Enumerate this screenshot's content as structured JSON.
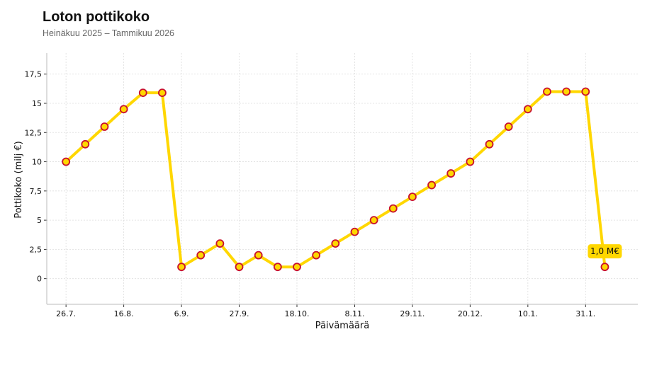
{
  "chart_data": {
    "type": "line",
    "title": "Loton pottikoko",
    "subtitle": "Heinäkuu 2025 – Tammikuu 2026",
    "xlabel": "Päivämäärä",
    "ylabel": "Pottikoko (milj €)",
    "ylim": [
      -2.2,
      19.3
    ],
    "yticks": [
      {
        "value": 0,
        "label": "0"
      },
      {
        "value": 2.5,
        "label": "2,5"
      },
      {
        "value": 5,
        "label": "5"
      },
      {
        "value": 7.5,
        "label": "7,5"
      },
      {
        "value": 10,
        "label": "10"
      },
      {
        "value": 12.5,
        "label": "12,5"
      },
      {
        "value": 15,
        "label": "15"
      },
      {
        "value": 17.5,
        "label": "17,5"
      }
    ],
    "xticks": [
      {
        "date": "2025-07-26",
        "label": "26.7."
      },
      {
        "date": "2025-08-16",
        "label": "16.8."
      },
      {
        "date": "2025-09-06",
        "label": "6.9."
      },
      {
        "date": "2025-09-27",
        "label": "27.9."
      },
      {
        "date": "2025-10-18",
        "label": "18.10."
      },
      {
        "date": "2025-11-08",
        "label": "8.11."
      },
      {
        "date": "2025-11-29",
        "label": "29.11."
      },
      {
        "date": "2025-12-20",
        "label": "20.12."
      },
      {
        "date": "2026-01-10",
        "label": "10.1."
      },
      {
        "date": "2026-01-31",
        "label": "31.1."
      }
    ],
    "xlim": [
      "2025-07-19",
      "2026-02-19"
    ],
    "grid": true,
    "series": [
      {
        "line_color": "#FFD700",
        "marker_fill": "#FFD700",
        "marker_edge": "#C8102E",
        "points": [
          {
            "x": "2025-07-26",
            "y": 10.0
          },
          {
            "x": "2025-08-02",
            "y": 11.5
          },
          {
            "x": "2025-08-09",
            "y": 13.0
          },
          {
            "x": "2025-08-16",
            "y": 14.5
          },
          {
            "x": "2025-08-23",
            "y": 15.9
          },
          {
            "x": "2025-08-30",
            "y": 15.9
          },
          {
            "x": "2025-09-06",
            "y": 1.0
          },
          {
            "x": "2025-09-13",
            "y": 2.0
          },
          {
            "x": "2025-09-20",
            "y": 3.0
          },
          {
            "x": "2025-09-27",
            "y": 1.0
          },
          {
            "x": "2025-10-04",
            "y": 2.0
          },
          {
            "x": "2025-10-11",
            "y": 1.0
          },
          {
            "x": "2025-10-18",
            "y": 1.0
          },
          {
            "x": "2025-10-25",
            "y": 2.0
          },
          {
            "x": "2025-11-01",
            "y": 3.0
          },
          {
            "x": "2025-11-08",
            "y": 4.0
          },
          {
            "x": "2025-11-15",
            "y": 5.0
          },
          {
            "x": "2025-11-22",
            "y": 6.0
          },
          {
            "x": "2025-11-29",
            "y": 7.0
          },
          {
            "x": "2025-12-06",
            "y": 8.0
          },
          {
            "x": "2025-12-13",
            "y": 9.0
          },
          {
            "x": "2025-12-20",
            "y": 10.0
          },
          {
            "x": "2025-12-27",
            "y": 11.5
          },
          {
            "x": "2026-01-03",
            "y": 13.0
          },
          {
            "x": "2026-01-10",
            "y": 14.5
          },
          {
            "x": "2026-01-17",
            "y": 16.0
          },
          {
            "x": "2026-01-24",
            "y": 16.0
          },
          {
            "x": "2026-01-31",
            "y": 16.0
          },
          {
            "x": "2026-02-07",
            "y": 1.0
          }
        ]
      }
    ],
    "annotations": [
      {
        "x": "2026-02-07",
        "y": 1.0,
        "text": "1,0 M€",
        "background": "#FFD700"
      }
    ]
  }
}
